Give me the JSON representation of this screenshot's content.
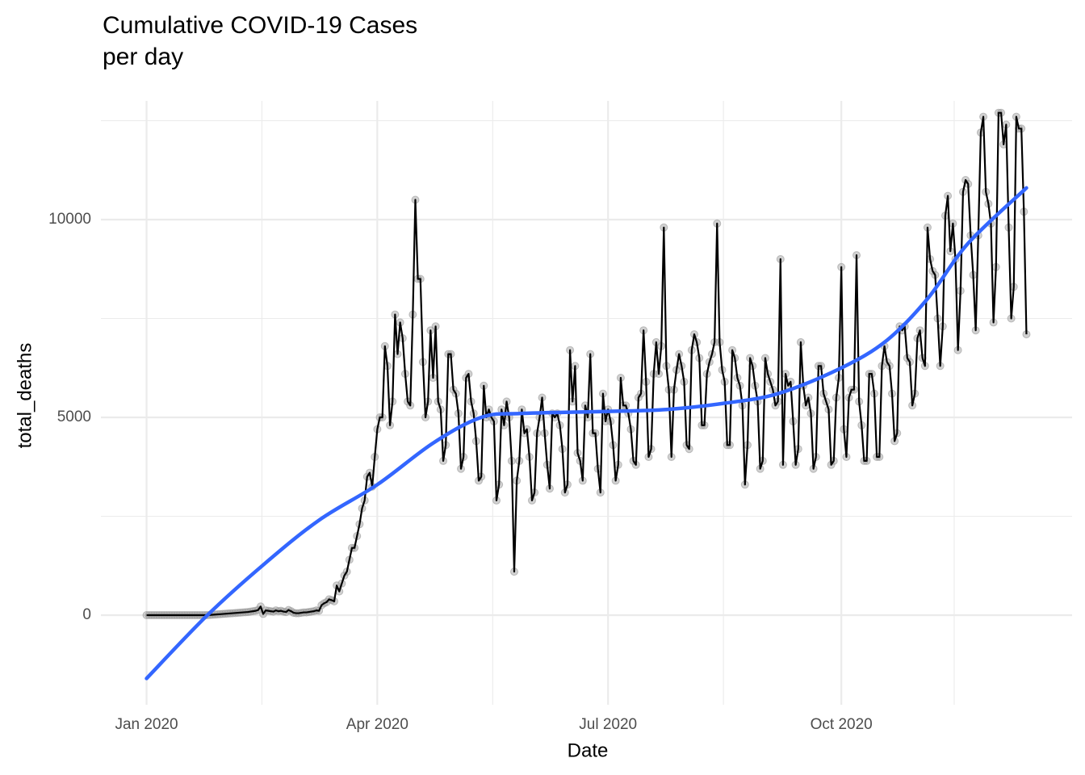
{
  "chart_data": {
    "type": "line",
    "title": [
      "Cumulative COVID-19 Cases",
      "per day"
    ],
    "x_label": "Date",
    "y_label": "total_deaths",
    "xlim": [
      "2019-12-14",
      "2020-12-31"
    ],
    "xticks": [
      {
        "value": "2020-01-01",
        "label": "Jan 2020"
      },
      {
        "value": "2020-04-01",
        "label": "Apr 2020"
      },
      {
        "value": "2020-07-01",
        "label": "Jul 2020"
      },
      {
        "value": "2020-10-01",
        "label": "Oct 2020"
      }
    ],
    "ylim": [
      -2265,
      13000
    ],
    "yticks": [
      0,
      5000,
      10000
    ],
    "grid": true,
    "x": [
      "2020-01-01",
      "2020-01-02",
      "2020-01-03",
      "2020-01-04",
      "2020-01-05",
      "2020-01-06",
      "2020-01-07",
      "2020-01-08",
      "2020-01-09",
      "2020-01-10",
      "2020-01-11",
      "2020-01-12",
      "2020-01-13",
      "2020-01-14",
      "2020-01-15",
      "2020-01-16",
      "2020-01-17",
      "2020-01-18",
      "2020-01-19",
      "2020-01-20",
      "2020-01-21",
      "2020-01-22",
      "2020-01-23",
      "2020-01-24",
      "2020-01-25",
      "2020-01-26",
      "2020-01-27",
      "2020-01-28",
      "2020-01-29",
      "2020-01-30",
      "2020-01-31",
      "2020-02-01",
      "2020-02-02",
      "2020-02-03",
      "2020-02-04",
      "2020-02-05",
      "2020-02-06",
      "2020-02-07",
      "2020-02-08",
      "2020-02-09",
      "2020-02-10",
      "2020-02-11",
      "2020-02-12",
      "2020-02-13",
      "2020-02-14",
      "2020-02-15",
      "2020-02-16",
      "2020-02-17",
      "2020-02-18",
      "2020-02-19",
      "2020-02-20",
      "2020-02-21",
      "2020-02-22",
      "2020-02-23",
      "2020-02-24",
      "2020-02-25",
      "2020-02-26",
      "2020-02-27",
      "2020-02-28",
      "2020-02-29",
      "2020-03-01",
      "2020-03-02",
      "2020-03-03",
      "2020-03-04",
      "2020-03-05",
      "2020-03-06",
      "2020-03-07",
      "2020-03-08",
      "2020-03-09",
      "2020-03-10",
      "2020-03-11",
      "2020-03-12",
      "2020-03-13",
      "2020-03-14",
      "2020-03-15",
      "2020-03-16",
      "2020-03-17",
      "2020-03-18",
      "2020-03-19",
      "2020-03-20",
      "2020-03-21",
      "2020-03-22",
      "2020-03-23",
      "2020-03-24",
      "2020-03-25",
      "2020-03-26",
      "2020-03-27",
      "2020-03-28",
      "2020-03-29",
      "2020-03-30",
      "2020-03-31",
      "2020-04-01",
      "2020-04-02",
      "2020-04-03",
      "2020-04-04",
      "2020-04-05",
      "2020-04-06",
      "2020-04-07",
      "2020-04-08",
      "2020-04-09",
      "2020-04-10",
      "2020-04-11",
      "2020-04-12",
      "2020-04-13",
      "2020-04-14",
      "2020-04-15",
      "2020-04-16",
      "2020-04-17",
      "2020-04-18",
      "2020-04-19",
      "2020-04-20",
      "2020-04-21",
      "2020-04-22",
      "2020-04-23",
      "2020-04-24",
      "2020-04-25",
      "2020-04-26",
      "2020-04-27",
      "2020-04-28",
      "2020-04-29",
      "2020-04-30",
      "2020-05-01",
      "2020-05-02",
      "2020-05-03",
      "2020-05-04",
      "2020-05-05",
      "2020-05-06",
      "2020-05-07",
      "2020-05-08",
      "2020-05-09",
      "2020-05-10",
      "2020-05-11",
      "2020-05-12",
      "2020-05-13",
      "2020-05-14",
      "2020-05-15",
      "2020-05-16",
      "2020-05-17",
      "2020-05-18",
      "2020-05-19",
      "2020-05-20",
      "2020-05-21",
      "2020-05-22",
      "2020-05-23",
      "2020-05-24",
      "2020-05-25",
      "2020-05-26",
      "2020-05-27",
      "2020-05-28",
      "2020-05-29",
      "2020-05-30",
      "2020-05-31",
      "2020-06-01",
      "2020-06-02",
      "2020-06-03",
      "2020-06-04",
      "2020-06-05",
      "2020-06-06",
      "2020-06-07",
      "2020-06-08",
      "2020-06-09",
      "2020-06-10",
      "2020-06-11",
      "2020-06-12",
      "2020-06-13",
      "2020-06-14",
      "2020-06-15",
      "2020-06-16",
      "2020-06-17",
      "2020-06-18",
      "2020-06-19",
      "2020-06-20",
      "2020-06-21",
      "2020-06-22",
      "2020-06-23",
      "2020-06-24",
      "2020-06-25",
      "2020-06-26",
      "2020-06-27",
      "2020-06-28",
      "2020-06-29",
      "2020-06-30",
      "2020-07-01",
      "2020-07-02",
      "2020-07-03",
      "2020-07-04",
      "2020-07-05",
      "2020-07-06",
      "2020-07-07",
      "2020-07-08",
      "2020-07-09",
      "2020-07-10",
      "2020-07-11",
      "2020-07-12",
      "2020-07-13",
      "2020-07-14",
      "2020-07-15",
      "2020-07-16",
      "2020-07-17",
      "2020-07-18",
      "2020-07-19",
      "2020-07-20",
      "2020-07-21",
      "2020-07-22",
      "2020-07-23",
      "2020-07-24",
      "2020-07-25",
      "2020-07-26",
      "2020-07-27",
      "2020-07-28",
      "2020-07-29",
      "2020-07-30",
      "2020-07-31",
      "2020-08-01",
      "2020-08-02",
      "2020-08-03",
      "2020-08-04",
      "2020-08-05",
      "2020-08-06",
      "2020-08-07",
      "2020-08-08",
      "2020-08-09",
      "2020-08-10",
      "2020-08-11",
      "2020-08-12",
      "2020-08-13",
      "2020-08-14",
      "2020-08-15",
      "2020-08-16",
      "2020-08-17",
      "2020-08-18",
      "2020-08-19",
      "2020-08-20",
      "2020-08-21",
      "2020-08-22",
      "2020-08-23",
      "2020-08-24",
      "2020-08-25",
      "2020-08-26",
      "2020-08-27",
      "2020-08-28",
      "2020-08-29",
      "2020-08-30",
      "2020-08-31",
      "2020-09-01",
      "2020-09-02",
      "2020-09-03",
      "2020-09-04",
      "2020-09-05",
      "2020-09-06",
      "2020-09-07",
      "2020-09-08",
      "2020-09-09",
      "2020-09-10",
      "2020-09-11",
      "2020-09-12",
      "2020-09-13",
      "2020-09-14",
      "2020-09-15",
      "2020-09-16",
      "2020-09-17",
      "2020-09-18",
      "2020-09-19",
      "2020-09-20",
      "2020-09-21",
      "2020-09-22",
      "2020-09-23",
      "2020-09-24",
      "2020-09-25",
      "2020-09-26",
      "2020-09-27",
      "2020-09-28",
      "2020-09-29",
      "2020-09-30",
      "2020-10-01",
      "2020-10-02",
      "2020-10-03",
      "2020-10-04",
      "2020-10-05",
      "2020-10-06",
      "2020-10-07",
      "2020-10-08",
      "2020-10-09",
      "2020-10-10",
      "2020-10-11",
      "2020-10-12",
      "2020-10-13",
      "2020-10-14",
      "2020-10-15",
      "2020-10-16",
      "2020-10-17",
      "2020-10-18",
      "2020-10-19",
      "2020-10-20",
      "2020-10-21",
      "2020-10-22",
      "2020-10-23",
      "2020-10-24",
      "2020-10-25",
      "2020-10-26",
      "2020-10-27",
      "2020-10-28",
      "2020-10-29",
      "2020-10-30",
      "2020-10-31",
      "2020-11-01",
      "2020-11-02",
      "2020-11-03",
      "2020-11-04",
      "2020-11-05",
      "2020-11-06",
      "2020-11-07",
      "2020-11-08",
      "2020-11-09",
      "2020-11-10",
      "2020-11-11",
      "2020-11-12",
      "2020-11-13",
      "2020-11-14",
      "2020-11-15",
      "2020-11-16",
      "2020-11-17",
      "2020-11-18",
      "2020-11-19",
      "2020-11-20",
      "2020-11-21",
      "2020-11-22",
      "2020-11-23",
      "2020-11-24",
      "2020-11-25",
      "2020-11-26",
      "2020-11-27",
      "2020-11-28",
      "2020-11-29",
      "2020-11-30",
      "2020-12-01",
      "2020-12-02",
      "2020-12-03",
      "2020-12-04",
      "2020-12-05",
      "2020-12-06",
      "2020-12-07",
      "2020-12-08",
      "2020-12-09",
      "2020-12-10",
      "2020-12-11",
      "2020-12-12",
      "2020-12-13"
    ],
    "series": [
      {
        "color": "#000000",
        "point_color": "#999999",
        "values": [
          0,
          0,
          0,
          0,
          0,
          0,
          0,
          0,
          0,
          0,
          0,
          0,
          0,
          0,
          0,
          0,
          0,
          0,
          0,
          0,
          0,
          0,
          0,
          0,
          0,
          5,
          10,
          15,
          20,
          25,
          30,
          35,
          40,
          45,
          50,
          55,
          60,
          65,
          70,
          75,
          80,
          90,
          100,
          110,
          130,
          220,
          30,
          120,
          110,
          100,
          90,
          120,
          100,
          110,
          90,
          80,
          130,
          100,
          60,
          50,
          50,
          60,
          70,
          70,
          80,
          90,
          100,
          120,
          110,
          250,
          300,
          330,
          400,
          380,
          350,
          750,
          600,
          800,
          1000,
          1100,
          1400,
          1700,
          1700,
          2000,
          2300,
          2700,
          2900,
          3500,
          3600,
          3250,
          4000,
          4700,
          5000,
          5000,
          6800,
          6300,
          4800,
          5400,
          7600,
          6600,
          7400,
          7000,
          6100,
          5400,
          5300,
          7600,
          10500,
          8500,
          8500,
          6400,
          5000,
          5400,
          7200,
          6000,
          7300,
          5400,
          5200,
          3900,
          4300,
          6600,
          6600,
          5700,
          5600,
          5100,
          3700,
          4000,
          6000,
          6100,
          5400,
          5100,
          4400,
          3400,
          3500,
          5800,
          5000,
          5200,
          5000,
          4900,
          2900,
          3300,
          5200,
          4800,
          5400,
          5000,
          3900,
          1100,
          3400,
          3900,
          5200,
          4600,
          4700,
          4000,
          2900,
          3100,
          4600,
          5000,
          5500,
          4600,
          3800,
          3200,
          5100,
          5000,
          5100,
          4800,
          4200,
          3100,
          3300,
          6700,
          5400,
          6300,
          4100,
          3900,
          3400,
          5300,
          5000,
          6600,
          4600,
          4600,
          3700,
          3100,
          5600,
          4900,
          5200,
          4900,
          4300,
          3400,
          3800,
          6000,
          5300,
          5300,
          5100,
          4700,
          3900,
          3800,
          5500,
          5600,
          7200,
          5900,
          4000,
          4200,
          6100,
          6900,
          6100,
          6800,
          9800,
          6300,
          5700,
          4000,
          5700,
          6200,
          6600,
          6300,
          5900,
          4300,
          4200,
          6700,
          7100,
          6900,
          6500,
          4800,
          4800,
          6100,
          6400,
          6600,
          6900,
          9900,
          6900,
          6200,
          5900,
          4300,
          4300,
          6700,
          6500,
          6000,
          5800,
          5300,
          3300,
          4300,
          6500,
          6300,
          5800,
          5400,
          3700,
          3900,
          6500,
          6100,
          5900,
          5700,
          5300,
          5400,
          9000,
          3800,
          6100,
          5800,
          5900,
          4900,
          3800,
          4200,
          6900,
          5800,
          5300,
          5500,
          5100,
          3700,
          4000,
          6300,
          6300,
          5600,
          5400,
          5200,
          3800,
          3900,
          5500,
          6000,
          8800,
          4700,
          4000,
          5500,
          5700,
          5700,
          9100,
          5400,
          4800,
          3900,
          3900,
          6100,
          6100,
          5600,
          4000,
          4000,
          6300,
          6800,
          6400,
          6300,
          5600,
          4400,
          4600,
          7300,
          7200,
          7300,
          6500,
          6400,
          5300,
          5600,
          7000,
          7200,
          6500,
          6300,
          9800,
          9000,
          8700,
          8600,
          7500,
          6300,
          7300,
          10100,
          10600,
          9200,
          9900,
          9000,
          6700,
          8200,
          10700,
          11000,
          10900,
          9600,
          8600,
          7200,
          9600,
          12200,
          12600,
          10700,
          10400,
          9900,
          7400,
          8800,
          12700,
          12700,
          11900,
          12400,
          9800,
          7500,
          8300,
          12600,
          12300,
          12300,
          10200,
          7100
        ]
      }
    ],
    "smooth": {
      "color": "#3366ff",
      "x": [
        "2020-01-01",
        "2020-01-25",
        "2020-02-16",
        "2020-03-09",
        "2020-04-01",
        "2020-04-23",
        "2020-05-12",
        "2020-05-28",
        "2020-07-01",
        "2020-07-24",
        "2020-08-15",
        "2020-09-06",
        "2020-10-01",
        "2020-10-19",
        "2020-11-04",
        "2020-11-20",
        "2020-12-13"
      ],
      "values": [
        -1600,
        0,
        1270,
        2400,
        3300,
        4350,
        5000,
        5100,
        5150,
        5200,
        5350,
        5600,
        6250,
        6950,
        8000,
        9400,
        10800
      ]
    }
  }
}
